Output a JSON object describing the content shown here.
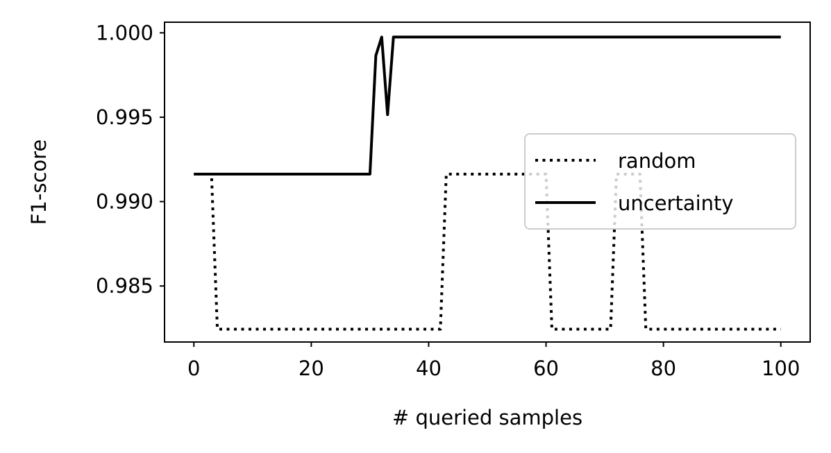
{
  "chart_data": {
    "type": "line",
    "title": "",
    "xlabel": "# queried samples",
    "ylabel": "F1-score",
    "xlim": [
      -5,
      105
    ],
    "ylim": [
      0.98168,
      1.00063
    ],
    "xticks": [
      0,
      20,
      40,
      60,
      80,
      100
    ],
    "xtick_labels": [
      "0",
      "20",
      "40",
      "60",
      "80",
      "100"
    ],
    "yticks": [
      0.985,
      0.99,
      0.995,
      1.0
    ],
    "ytick_labels": [
      "0.985",
      "0.990",
      "0.995",
      "1.000"
    ],
    "grid": false,
    "legend_position": "center right",
    "series": [
      {
        "name": "random",
        "style": "dotted",
        "color": "#000000",
        "points": [
          [
            0,
            0.99163
          ],
          [
            3,
            0.99163
          ],
          [
            4,
            0.98244
          ],
          [
            42,
            0.98244
          ],
          [
            43,
            0.99163
          ],
          [
            60,
            0.99163
          ],
          [
            61,
            0.98244
          ],
          [
            71,
            0.98244
          ],
          [
            72,
            0.99163
          ],
          [
            76,
            0.99163
          ],
          [
            77,
            0.98244
          ],
          [
            100,
            0.98244
          ]
        ]
      },
      {
        "name": "uncertainty",
        "style": "solid",
        "color": "#000000",
        "points": [
          [
            0,
            0.99163
          ],
          [
            30,
            0.99163
          ],
          [
            31,
            0.99865
          ],
          [
            32,
            0.99975
          ],
          [
            33,
            0.99515
          ],
          [
            34,
            0.99975
          ],
          [
            100,
            0.99975
          ]
        ]
      }
    ]
  }
}
